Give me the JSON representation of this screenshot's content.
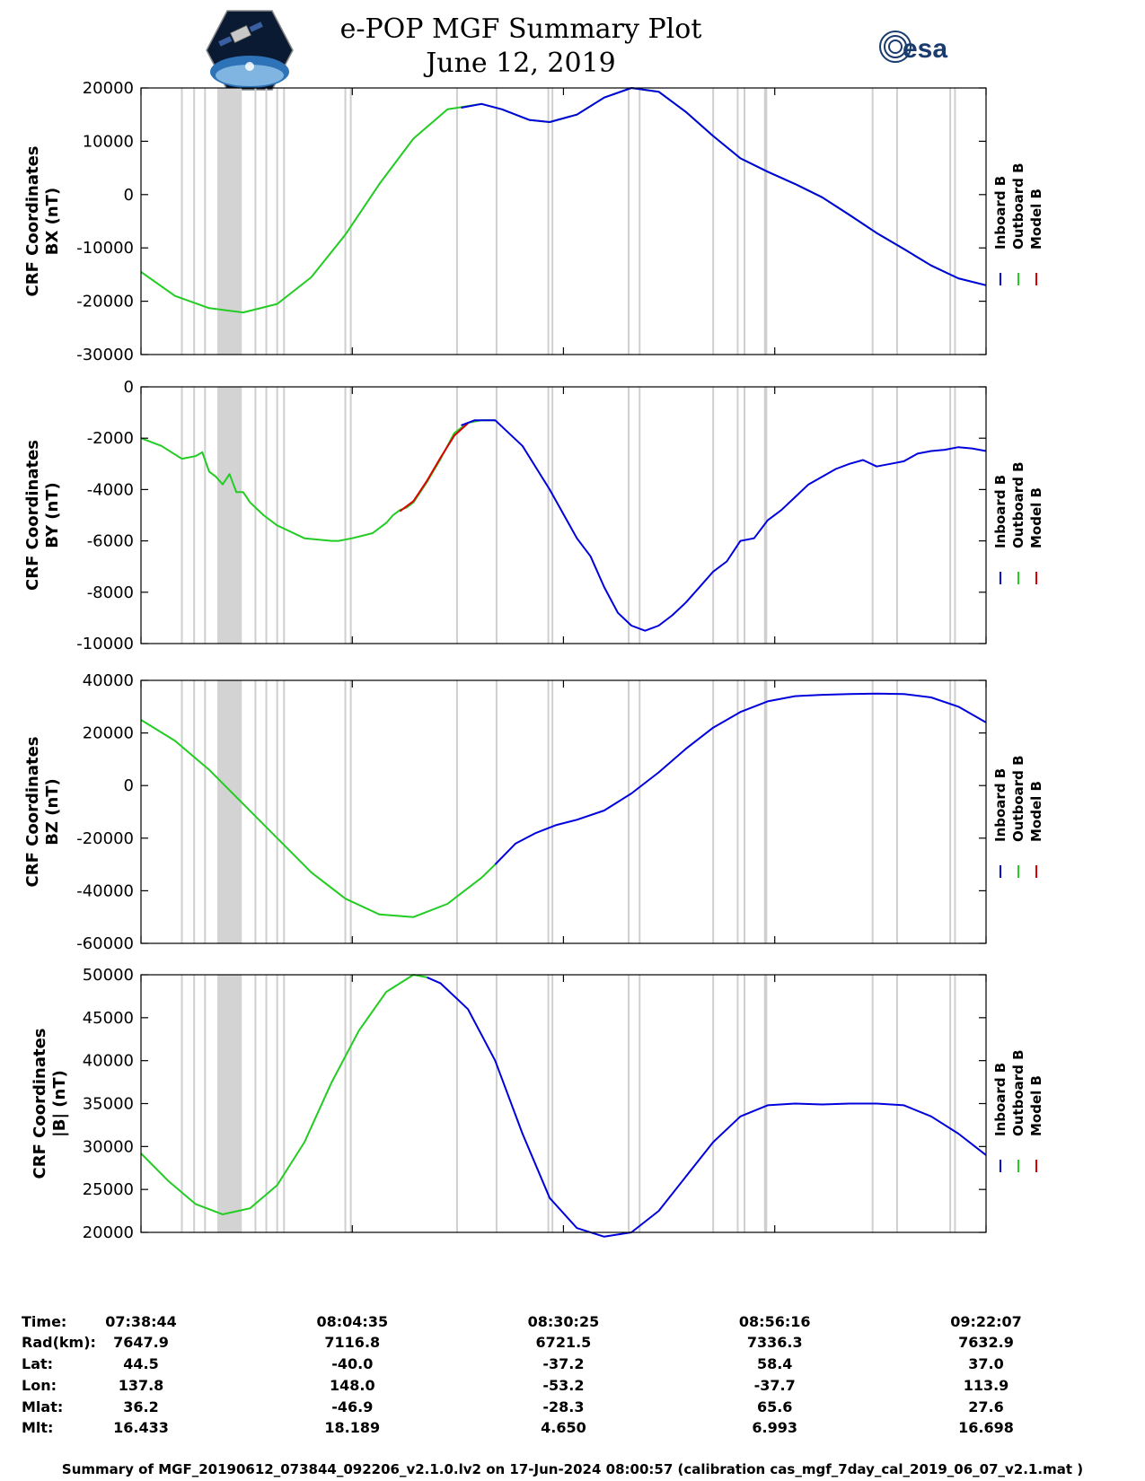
{
  "title": {
    "line1": "e-POP MGF Summary Plot",
    "line2": "June 12, 2019"
  },
  "logos": {
    "mission": "cassiope-mission-logo",
    "agency": "esa"
  },
  "colors": {
    "inboard": "#0000dd",
    "outboard": "#22cc22",
    "model": "#dd0000",
    "gap_shade": "#d3d3d3",
    "gap_line": "#cfcfcf"
  },
  "legend": [
    "Inboard B",
    "Outboard B",
    "Model B"
  ],
  "chart_data": [
    {
      "type": "line",
      "ylabel": [
        "CRF Coordinates",
        "BX (nT)"
      ],
      "ylim": [
        -30000,
        20000
      ],
      "yticks": [
        20000,
        10000,
        0,
        -10000,
        -20000,
        -30000
      ],
      "xlim": [
        0,
        6203
      ],
      "xticks_s": [
        0,
        1551,
        3101,
        4652,
        6203
      ],
      "grid": false,
      "series": [
        {
          "name": "Outboard B",
          "color": "green",
          "x": [
            0,
            250,
            500,
            750,
            1000,
            1250,
            1500,
            1750,
            2000,
            2250,
            2500,
            2650,
            2850,
            3000,
            3200,
            3400,
            3600,
            3800,
            4000,
            4200,
            4400,
            4600,
            4800,
            5000,
            5200,
            5400,
            5600,
            5800,
            6000,
            6203
          ],
          "y": [
            -14500,
            -19000,
            -21300,
            -22100,
            -20500,
            -15500,
            -7500,
            2000,
            10500,
            16000,
            17000,
            16000,
            14000,
            13600,
            15000,
            18200,
            20000,
            19300,
            15500,
            11000,
            6800,
            4300,
            2000,
            -500,
            -3800,
            -7200,
            -10200,
            -13300,
            -15700,
            -17000
          ]
        },
        {
          "name": "Inboard B",
          "color": "blue",
          "x": [
            2350,
            2500,
            2650,
            2850,
            3000,
            3200,
            3400,
            3600,
            3800,
            4000,
            4200,
            4400,
            4600,
            4800,
            5000,
            5200,
            5400,
            5600,
            5800,
            6000,
            6203
          ],
          "y": [
            16300,
            17000,
            16000,
            14000,
            13600,
            15000,
            18200,
            20000,
            19300,
            15500,
            11000,
            6800,
            4300,
            2000,
            -500,
            -3800,
            -7200,
            -10200,
            -13300,
            -15700,
            -17000
          ]
        }
      ]
    },
    {
      "type": "line",
      "ylabel": [
        "CRF Coordinates",
        "BY (nT)"
      ],
      "ylim": [
        -10000,
        0
      ],
      "yticks": [
        0,
        -2000,
        -4000,
        -6000,
        -8000,
        -10000
      ],
      "xlim": [
        0,
        6203
      ],
      "xticks_s": [
        0,
        1551,
        3101,
        4652,
        6203
      ],
      "grid": false,
      "series": [
        {
          "name": "Outboard B",
          "color": "green",
          "x": [
            0,
            150,
            300,
            400,
            450,
            500,
            550,
            600,
            650,
            700,
            750,
            800,
            900,
            1000,
            1200,
            1400,
            1450,
            1550,
            1700,
            1800,
            1850,
            1900,
            1950,
            2000,
            2100,
            2200,
            2300,
            2400,
            2500,
            2600
          ],
          "y": [
            -2000,
            -2300,
            -2800,
            -2700,
            -2550,
            -3300,
            -3500,
            -3800,
            -3400,
            -4100,
            -4100,
            -4500,
            -5000,
            -5400,
            -5900,
            -6000,
            -6000,
            -5900,
            -5700,
            -5300,
            -5000,
            -4800,
            -4700,
            -4500,
            -3700,
            -2800,
            -1800,
            -1400,
            -1300,
            -1300
          ]
        },
        {
          "name": "Model B",
          "color": "red",
          "x": [
            1900,
            2000,
            2100,
            2200,
            2300,
            2400
          ],
          "y": [
            -4850,
            -4450,
            -3650,
            -2750,
            -1900,
            -1420
          ]
        },
        {
          "name": "Inboard B",
          "color": "blue",
          "x": [
            2350,
            2450,
            2600,
            2800,
            3000,
            3200,
            3300,
            3400,
            3500,
            3600,
            3700,
            3800,
            3900,
            4000,
            4100,
            4200,
            4300,
            4400,
            4500,
            4600,
            4700,
            4800,
            4900,
            5000,
            5100,
            5200,
            5300,
            5400,
            5500,
            5600,
            5700,
            5800,
            5900,
            6000,
            6100,
            6203
          ],
          "y": [
            -1500,
            -1300,
            -1300,
            -2300,
            -4000,
            -5900,
            -6600,
            -7800,
            -8800,
            -9300,
            -9500,
            -9300,
            -8900,
            -8400,
            -7800,
            -7200,
            -6800,
            -6000,
            -5900,
            -5200,
            -4800,
            -4300,
            -3800,
            -3500,
            -3200,
            -3000,
            -2850,
            -3100,
            -3000,
            -2900,
            -2600,
            -2500,
            -2450,
            -2350,
            -2400,
            -2500
          ]
        }
      ]
    },
    {
      "type": "line",
      "ylabel": [
        "CRF Coordinates",
        "BZ (nT)"
      ],
      "ylim": [
        -60000,
        40000
      ],
      "yticks": [
        40000,
        20000,
        0,
        -20000,
        -40000,
        -60000
      ],
      "xlim": [
        0,
        6203
      ],
      "xticks_s": [
        0,
        1551,
        3101,
        4652,
        6203
      ],
      "grid": false,
      "series": [
        {
          "name": "Outboard B",
          "color": "green",
          "x": [
            0,
            250,
            500,
            750,
            1000,
            1250,
            1500,
            1750,
            2000,
            2250,
            2500,
            2600
          ],
          "y": [
            25000,
            17000,
            6000,
            -7000,
            -20000,
            -33000,
            -43000,
            -49000,
            -50000,
            -45000,
            -35000,
            -30000
          ]
        },
        {
          "name": "Inboard B",
          "color": "blue",
          "x": [
            2600,
            2750,
            2900,
            3050,
            3200,
            3400,
            3600,
            3800,
            4000,
            4200,
            4400,
            4600,
            4800,
            5000,
            5200,
            5400,
            5600,
            5800,
            6000,
            6203
          ],
          "y": [
            -30000,
            -22000,
            -18000,
            -15000,
            -13000,
            -9500,
            -3000,
            5000,
            14000,
            22000,
            28000,
            32000,
            34000,
            34500,
            34800,
            35000,
            34800,
            33500,
            30000,
            24000
          ]
        }
      ]
    },
    {
      "type": "line",
      "ylabel": [
        "CRF Coordinates",
        "|B| (nT)"
      ],
      "ylim": [
        20000,
        50000
      ],
      "yticks": [
        50000,
        45000,
        40000,
        35000,
        30000,
        25000,
        20000
      ],
      "xlim": [
        0,
        6203
      ],
      "xticks_s": [
        0,
        1551,
        3101,
        4652,
        6203
      ],
      "grid": false,
      "series": [
        {
          "name": "Outboard B",
          "color": "green",
          "x": [
            0,
            200,
            400,
            600,
            800,
            1000,
            1200,
            1400,
            1600,
            1800,
            2000,
            2100
          ],
          "y": [
            29200,
            26000,
            23300,
            22100,
            22800,
            25500,
            30500,
            37500,
            43500,
            48000,
            50000,
            49700
          ]
        },
        {
          "name": "Inboard B",
          "color": "blue",
          "x": [
            2100,
            2200,
            2400,
            2600,
            2800,
            3000,
            3200,
            3400,
            3600,
            3800,
            4000,
            4200,
            4400,
            4600,
            4800,
            5000,
            5200,
            5400,
            5600,
            5800,
            6000,
            6203
          ],
          "y": [
            49700,
            49000,
            46000,
            40000,
            31500,
            24000,
            20500,
            19500,
            20000,
            22500,
            26500,
            30500,
            33500,
            34800,
            35000,
            34900,
            35000,
            35000,
            34800,
            33500,
            31500,
            29000
          ]
        }
      ]
    }
  ],
  "gaps": {
    "bands_s": [
      [
        560,
        740
      ]
    ],
    "lines_s": [
      300,
      390,
      470,
      840,
      920,
      1000,
      1050,
      1500,
      1540,
      2320,
      2610,
      2990,
      3020,
      3580,
      3660,
      4200,
      4380,
      4430,
      4580,
      4590,
      5370,
      5550,
      5940,
      5975
    ]
  },
  "ephemeris": {
    "labels": [
      "Time:",
      "Rad(km):",
      "Lat:",
      "Lon:",
      "Mlat:",
      "Mlt:"
    ],
    "columns": [
      [
        "07:38:44",
        "7647.9",
        "44.5",
        "137.8",
        "36.2",
        "16.433"
      ],
      [
        "08:04:35",
        "7116.8",
        "-40.0",
        "148.0",
        "-46.9",
        "18.189"
      ],
      [
        "08:30:25",
        "6721.5",
        "-37.2",
        "-53.2",
        "-28.3",
        "4.650"
      ],
      [
        "08:56:16",
        "7336.3",
        "58.4",
        "-37.7",
        "65.6",
        "6.993"
      ],
      [
        "09:22:07",
        "7632.9",
        "37.0",
        "113.9",
        "27.6",
        "16.698"
      ]
    ]
  },
  "footer": "Summary of MGF_20190612_073844_092206_v2.1.0.lv2 on 17-Jun-2024 08:00:57 (calibration cas_mgf_7day_cal_2019_06_07_v2.1.mat )"
}
